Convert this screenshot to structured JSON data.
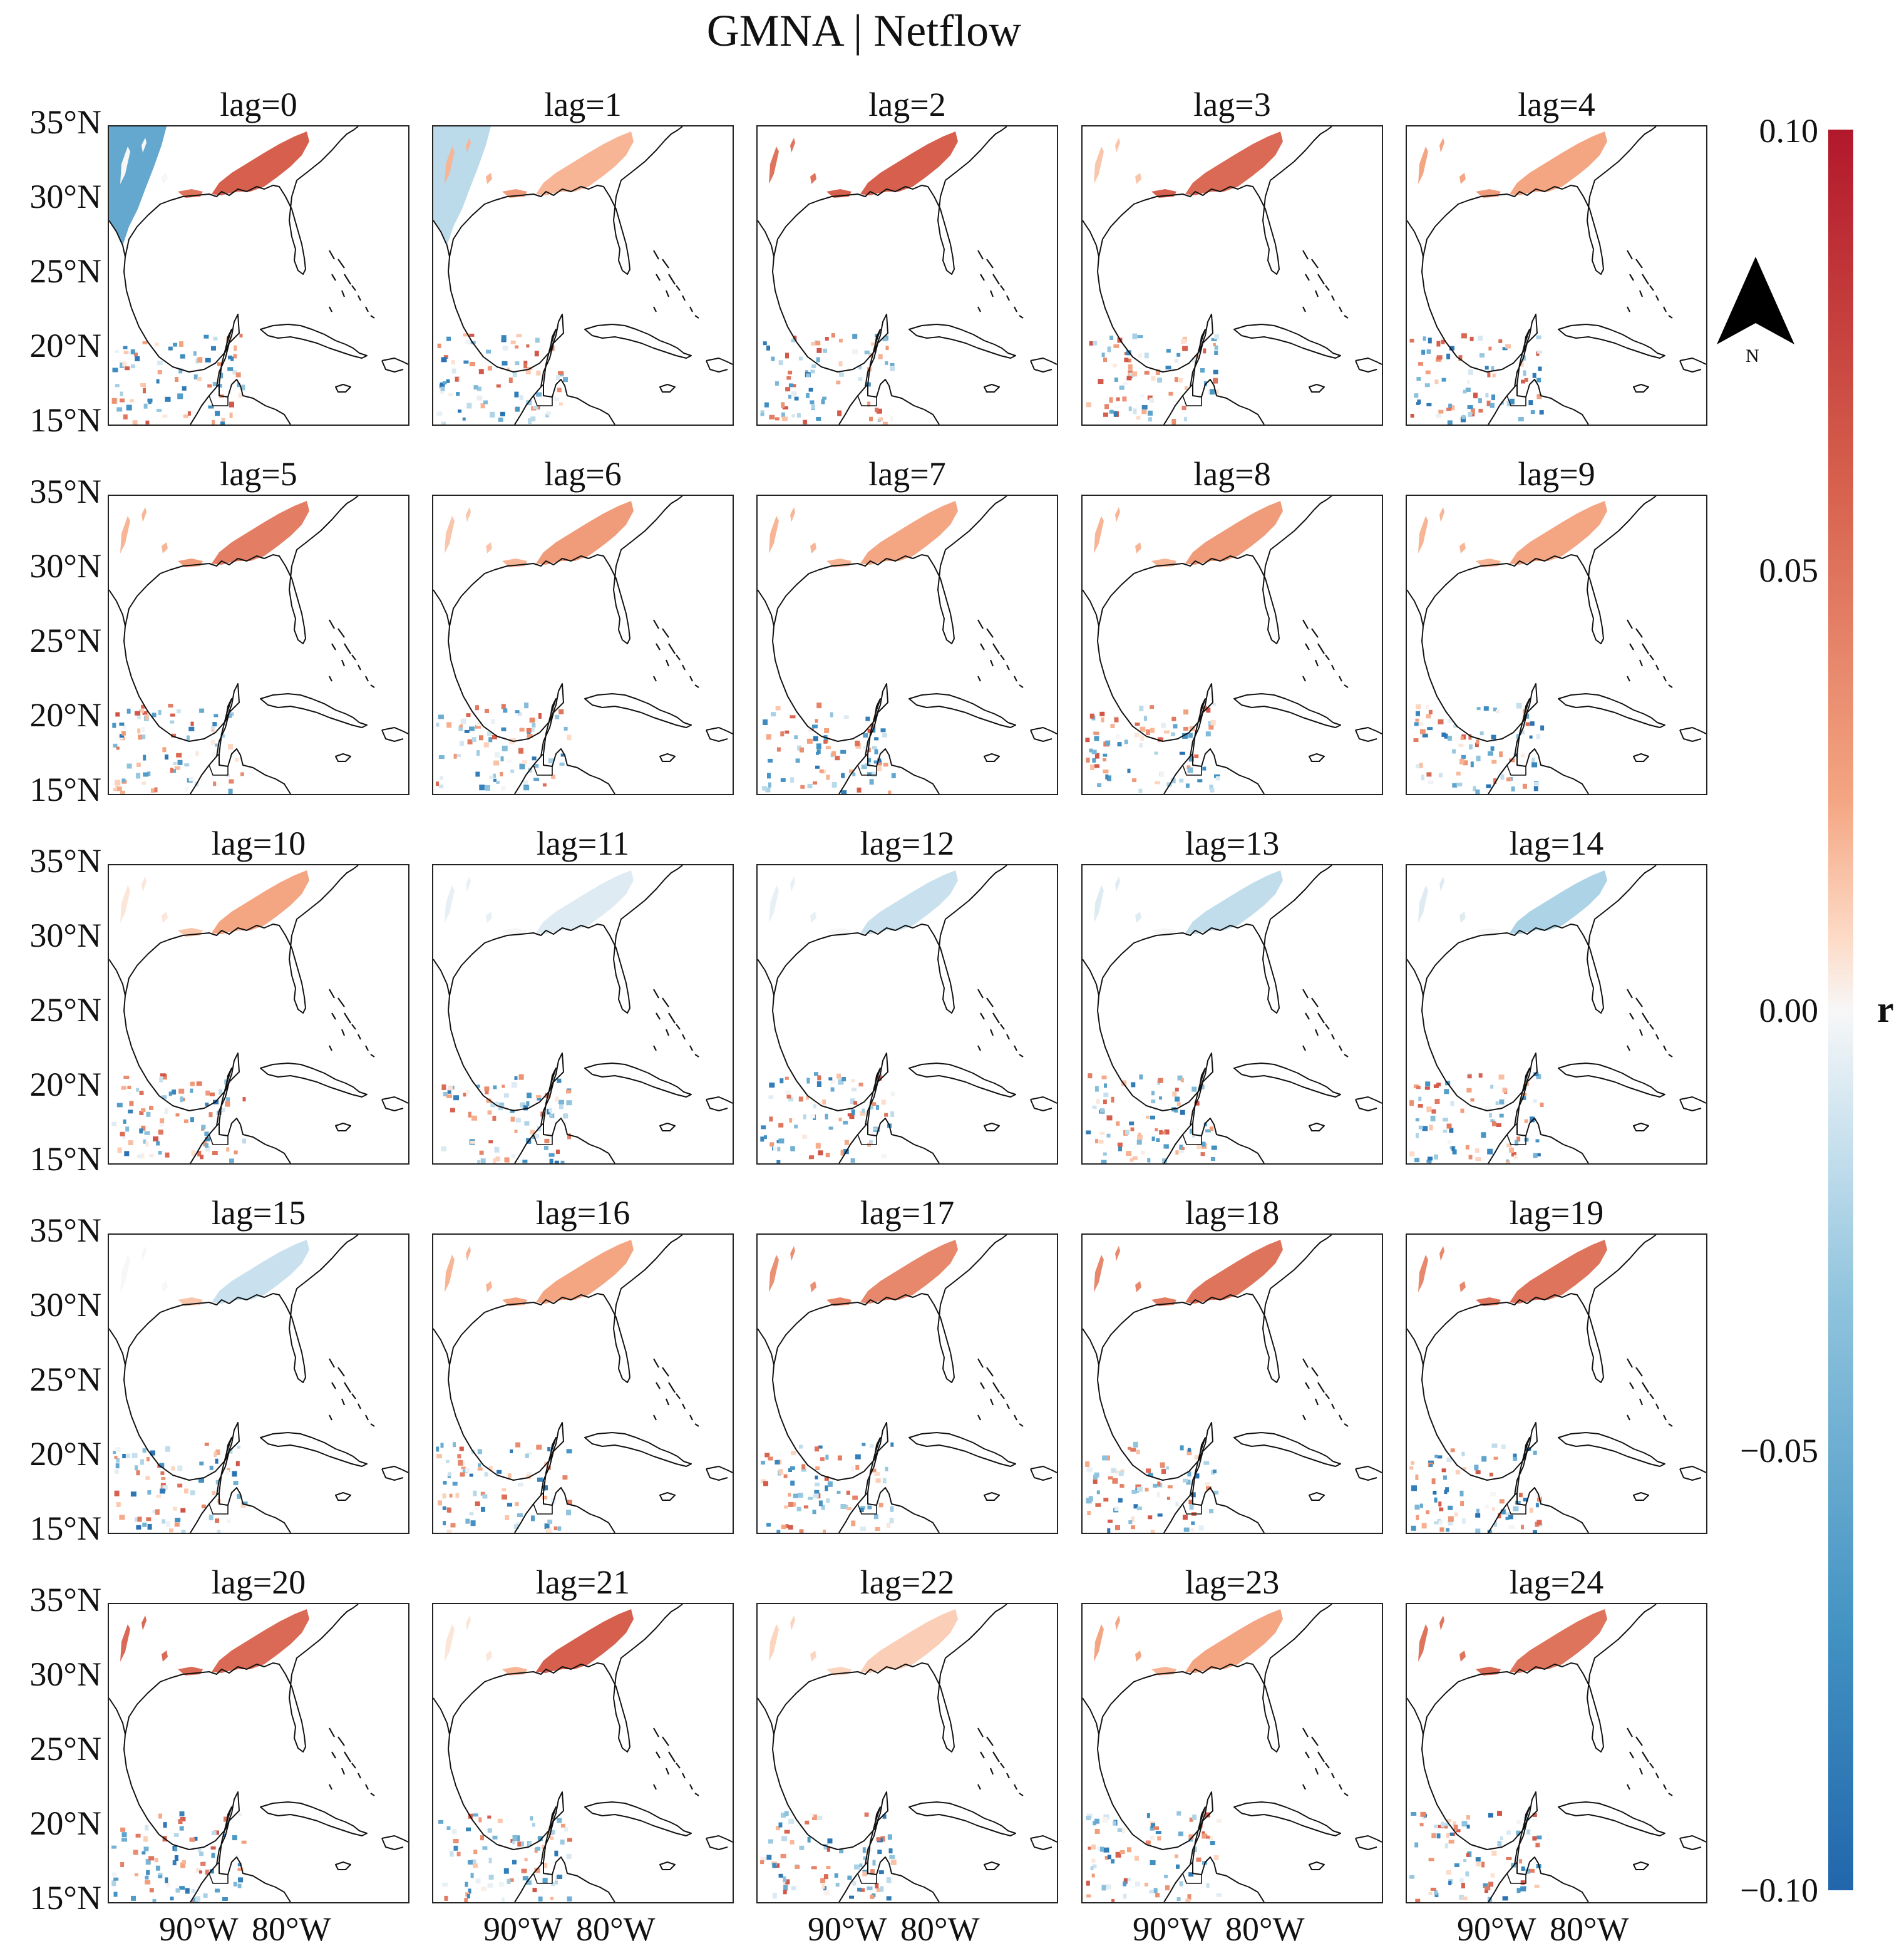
{
  "title": "GMNA | Netflow",
  "lags": [
    "lag=0",
    "lag=1",
    "lag=2",
    "lag=3",
    "lag=4",
    "lag=5",
    "lag=6",
    "lag=7",
    "lag=8",
    "lag=9",
    "lag=10",
    "lag=11",
    "lag=12",
    "lag=13",
    "lag=14",
    "lag=15",
    "lag=16",
    "lag=17",
    "lag=18",
    "lag=19",
    "lag=20",
    "lag=21",
    "lag=22",
    "lag=23",
    "lag=24"
  ],
  "y_tick_labels": [
    "35°N",
    "30°N",
    "25°N",
    "20°N",
    "15°N"
  ],
  "x_tick_labels": [
    "90°W",
    "80°W"
  ],
  "colorbar": {
    "label": "r",
    "ticks": [
      "0.10",
      "0.05",
      "0.00",
      "−0.05",
      "−0.10"
    ],
    "range": [
      -0.1,
      0.1
    ],
    "colors": {
      "max": "#b2182b",
      "mid": "#f7f7f7",
      "min": "#2166ac"
    }
  },
  "north_arrow": {
    "label": "N"
  },
  "panel_values": [
    {
      "southeast": 0.06,
      "texas": -0.055,
      "west_spots": 0.0,
      "coast": 0.05
    },
    {
      "southeast": 0.02,
      "texas": -0.02,
      "west_spots": 0.02,
      "coast": 0.03
    },
    {
      "southeast": 0.06,
      "texas": 0.0,
      "west_spots": 0.05,
      "coast": 0.06
    },
    {
      "southeast": 0.055,
      "texas": 0.0,
      "west_spots": 0.015,
      "coast": 0.06
    },
    {
      "southeast": 0.025,
      "texas": 0.0,
      "west_spots": 0.025,
      "coast": 0.03
    },
    {
      "southeast": 0.045,
      "texas": 0.0,
      "west_spots": 0.02,
      "coast": 0.03
    },
    {
      "southeast": 0.03,
      "texas": 0.0,
      "west_spots": 0.015,
      "coast": 0.02
    },
    {
      "southeast": 0.025,
      "texas": 0.0,
      "west_spots": 0.02,
      "coast": 0.02
    },
    {
      "southeast": 0.03,
      "texas": 0.0,
      "west_spots": 0.02,
      "coast": 0.02
    },
    {
      "southeast": 0.025,
      "texas": 0.0,
      "west_spots": 0.02,
      "coast": 0.02
    },
    {
      "southeast": 0.025,
      "texas": 0.0,
      "west_spots": 0.005,
      "coast": 0.015
    },
    {
      "southeast": -0.008,
      "texas": 0.0,
      "west_spots": -0.005,
      "coast": 0.0
    },
    {
      "southeast": -0.015,
      "texas": 0.0,
      "west_spots": -0.005,
      "coast": 0.0
    },
    {
      "southeast": -0.018,
      "texas": 0.0,
      "west_spots": -0.008,
      "coast": 0.0
    },
    {
      "southeast": -0.025,
      "texas": 0.0,
      "west_spots": -0.008,
      "coast": 0.0
    },
    {
      "southeast": -0.015,
      "texas": 0.0,
      "west_spots": 0.0,
      "coast": 0.015
    },
    {
      "southeast": 0.025,
      "texas": 0.0,
      "west_spots": 0.02,
      "coast": 0.025
    },
    {
      "southeast": 0.04,
      "texas": 0.0,
      "west_spots": 0.035,
      "coast": 0.04
    },
    {
      "southeast": 0.05,
      "texas": 0.0,
      "west_spots": 0.04,
      "coast": 0.045
    },
    {
      "southeast": 0.05,
      "texas": 0.0,
      "west_spots": 0.04,
      "coast": 0.05
    },
    {
      "southeast": 0.055,
      "texas": 0.0,
      "west_spots": 0.055,
      "coast": 0.055
    },
    {
      "southeast": 0.06,
      "texas": 0.0,
      "west_spots": 0.005,
      "coast": 0.02
    },
    {
      "southeast": 0.012,
      "texas": 0.0,
      "west_spots": 0.01,
      "coast": 0.01
    },
    {
      "southeast": 0.025,
      "texas": 0.0,
      "west_spots": 0.025,
      "coast": 0.02
    },
    {
      "southeast": 0.05,
      "texas": 0.0,
      "west_spots": 0.05,
      "coast": 0.055
    }
  ]
}
